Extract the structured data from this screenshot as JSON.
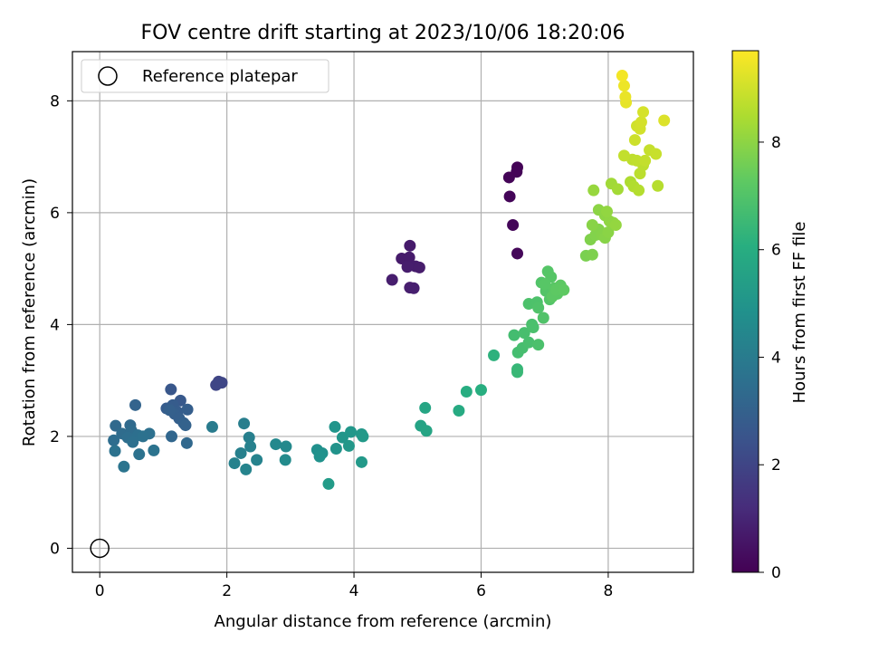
{
  "chart_data": {
    "type": "scatter",
    "title": "FOV centre drift starting at 2023/10/06 18:20:06",
    "xlabel": "Angular distance from reference (arcmin)",
    "ylabel": "Rotation from reference (arcmin)",
    "xlim": [
      -0.43,
      9.34
    ],
    "ylim": [
      -0.43,
      8.88
    ],
    "xticks": [
      0,
      2,
      4,
      6,
      8
    ],
    "yticks": [
      0,
      2,
      4,
      6,
      8
    ],
    "grid": true,
    "legend": {
      "position": "upper left",
      "entries": [
        "Reference platepar"
      ]
    },
    "reference_point": {
      "x": 0,
      "y": 0,
      "label": "Reference platepar"
    },
    "colorbar": {
      "label": "Hours from first FF file",
      "min": 0,
      "max": 9.7,
      "ticks": [
        0,
        2,
        4,
        6,
        8
      ],
      "colormap": "viridis"
    },
    "series": [
      {
        "points": [
          {
            "x": 6.57,
            "y": 6.81,
            "h": 0.05
          },
          {
            "x": 6.56,
            "y": 6.73,
            "h": 0.08
          },
          {
            "x": 6.44,
            "y": 6.63,
            "h": 0.1
          },
          {
            "x": 6.45,
            "y": 6.29,
            "h": 0.12
          },
          {
            "x": 6.5,
            "y": 5.78,
            "h": 0.15
          },
          {
            "x": 6.57,
            "y": 5.27,
            "h": 0.18
          },
          {
            "x": 4.88,
            "y": 5.41,
            "h": 0.7
          },
          {
            "x": 4.75,
            "y": 5.18,
            "h": 0.72
          },
          {
            "x": 4.87,
            "y": 5.2,
            "h": 0.73
          },
          {
            "x": 4.97,
            "y": 5.04,
            "h": 0.75
          },
          {
            "x": 5.03,
            "y": 5.02,
            "h": 0.76
          },
          {
            "x": 4.84,
            "y": 5.03,
            "h": 0.78
          },
          {
            "x": 4.6,
            "y": 4.8,
            "h": 0.8
          },
          {
            "x": 4.88,
            "y": 4.66,
            "h": 0.82
          },
          {
            "x": 4.94,
            "y": 4.65,
            "h": 0.84
          },
          {
            "x": 1.87,
            "y": 2.98,
            "h": 2.0
          },
          {
            "x": 1.92,
            "y": 2.96,
            "h": 2.02
          },
          {
            "x": 1.83,
            "y": 2.92,
            "h": 2.04
          },
          {
            "x": 1.12,
            "y": 2.84,
            "h": 2.6
          },
          {
            "x": 1.27,
            "y": 2.64,
            "h": 2.7
          },
          {
            "x": 1.05,
            "y": 2.5,
            "h": 2.8
          },
          {
            "x": 1.15,
            "y": 2.56,
            "h": 2.82
          },
          {
            "x": 1.22,
            "y": 2.44,
            "h": 2.85
          },
          {
            "x": 1.38,
            "y": 2.48,
            "h": 2.88
          },
          {
            "x": 1.18,
            "y": 2.4,
            "h": 2.9
          },
          {
            "x": 1.25,
            "y": 2.32,
            "h": 2.92
          },
          {
            "x": 1.1,
            "y": 2.47,
            "h": 2.95
          },
          {
            "x": 1.32,
            "y": 2.24,
            "h": 3.0
          },
          {
            "x": 1.35,
            "y": 2.2,
            "h": 3.02
          },
          {
            "x": 0.56,
            "y": 2.56,
            "h": 3.1
          },
          {
            "x": 1.13,
            "y": 2.0,
            "h": 3.2
          },
          {
            "x": 1.37,
            "y": 1.88,
            "h": 3.25
          },
          {
            "x": 0.25,
            "y": 2.19,
            "h": 3.3
          },
          {
            "x": 0.48,
            "y": 2.2,
            "h": 3.35
          },
          {
            "x": 0.35,
            "y": 2.05,
            "h": 3.4
          },
          {
            "x": 0.5,
            "y": 2.1,
            "h": 3.42
          },
          {
            "x": 0.22,
            "y": 1.93,
            "h": 3.45
          },
          {
            "x": 0.44,
            "y": 1.98,
            "h": 3.5
          },
          {
            "x": 0.6,
            "y": 2.02,
            "h": 3.52
          },
          {
            "x": 0.78,
            "y": 2.05,
            "h": 3.55
          },
          {
            "x": 0.52,
            "y": 1.9,
            "h": 3.58
          },
          {
            "x": 0.68,
            "y": 2.0,
            "h": 3.6
          },
          {
            "x": 0.24,
            "y": 1.74,
            "h": 3.62
          },
          {
            "x": 0.62,
            "y": 1.68,
            "h": 3.65
          },
          {
            "x": 0.85,
            "y": 1.75,
            "h": 3.68
          },
          {
            "x": 0.38,
            "y": 1.46,
            "h": 3.7
          },
          {
            "x": 1.77,
            "y": 2.17,
            "h": 4.0
          },
          {
            "x": 2.27,
            "y": 2.23,
            "h": 4.1
          },
          {
            "x": 2.35,
            "y": 1.98,
            "h": 4.15
          },
          {
            "x": 2.22,
            "y": 1.7,
            "h": 4.2
          },
          {
            "x": 2.37,
            "y": 1.82,
            "h": 4.22
          },
          {
            "x": 2.12,
            "y": 1.52,
            "h": 4.25
          },
          {
            "x": 2.47,
            "y": 1.58,
            "h": 4.3
          },
          {
            "x": 2.3,
            "y": 1.41,
            "h": 4.35
          },
          {
            "x": 2.77,
            "y": 1.86,
            "h": 4.5
          },
          {
            "x": 2.93,
            "y": 1.82,
            "h": 4.55
          },
          {
            "x": 2.92,
            "y": 1.58,
            "h": 4.6
          },
          {
            "x": 3.42,
            "y": 1.76,
            "h": 4.8
          },
          {
            "x": 3.5,
            "y": 1.7,
            "h": 4.85
          },
          {
            "x": 3.46,
            "y": 1.64,
            "h": 4.9
          },
          {
            "x": 3.72,
            "y": 1.78,
            "h": 4.95
          },
          {
            "x": 3.7,
            "y": 2.17,
            "h": 5.0
          },
          {
            "x": 3.82,
            "y": 1.98,
            "h": 5.05
          },
          {
            "x": 3.95,
            "y": 2.08,
            "h": 5.1
          },
          {
            "x": 3.92,
            "y": 1.83,
            "h": 5.12
          },
          {
            "x": 4.12,
            "y": 2.04,
            "h": 5.15
          },
          {
            "x": 4.14,
            "y": 2.0,
            "h": 5.18
          },
          {
            "x": 4.12,
            "y": 1.54,
            "h": 5.2
          },
          {
            "x": 3.6,
            "y": 1.15,
            "h": 5.25
          },
          {
            "x": 5.05,
            "y": 2.19,
            "h": 5.6
          },
          {
            "x": 5.14,
            "y": 2.1,
            "h": 5.65
          },
          {
            "x": 5.12,
            "y": 2.51,
            "h": 5.7
          },
          {
            "x": 5.65,
            "y": 2.46,
            "h": 5.9
          },
          {
            "x": 5.77,
            "y": 2.8,
            "h": 6.0
          },
          {
            "x": 6.0,
            "y": 2.83,
            "h": 6.05
          },
          {
            "x": 6.2,
            "y": 3.45,
            "h": 6.2
          },
          {
            "x": 6.57,
            "y": 3.2,
            "h": 6.4
          },
          {
            "x": 6.57,
            "y": 3.15,
            "h": 6.45
          },
          {
            "x": 6.52,
            "y": 3.81,
            "h": 6.7
          },
          {
            "x": 6.58,
            "y": 3.5,
            "h": 6.72
          },
          {
            "x": 6.65,
            "y": 3.58,
            "h": 6.75
          },
          {
            "x": 6.68,
            "y": 3.85,
            "h": 6.78
          },
          {
            "x": 6.75,
            "y": 3.68,
            "h": 6.8
          },
          {
            "x": 6.8,
            "y": 4.0,
            "h": 6.82
          },
          {
            "x": 6.82,
            "y": 3.95,
            "h": 6.85
          },
          {
            "x": 6.9,
            "y": 3.64,
            "h": 6.88
          },
          {
            "x": 6.75,
            "y": 4.37,
            "h": 6.9
          },
          {
            "x": 6.88,
            "y": 4.4,
            "h": 6.92
          },
          {
            "x": 6.9,
            "y": 4.3,
            "h": 6.95
          },
          {
            "x": 6.98,
            "y": 4.12,
            "h": 6.98
          },
          {
            "x": 6.95,
            "y": 4.75,
            "h": 7.0
          },
          {
            "x": 7.02,
            "y": 4.6,
            "h": 7.02
          },
          {
            "x": 7.08,
            "y": 4.45,
            "h": 7.05
          },
          {
            "x": 7.05,
            "y": 4.95,
            "h": 7.08
          },
          {
            "x": 7.1,
            "y": 4.85,
            "h": 7.1
          },
          {
            "x": 7.0,
            "y": 4.72,
            "h": 7.12
          },
          {
            "x": 7.15,
            "y": 4.65,
            "h": 7.15
          },
          {
            "x": 7.2,
            "y": 4.55,
            "h": 7.18
          },
          {
            "x": 7.12,
            "y": 4.5,
            "h": 7.2
          },
          {
            "x": 7.25,
            "y": 4.7,
            "h": 7.22
          },
          {
            "x": 7.18,
            "y": 4.62,
            "h": 7.25
          },
          {
            "x": 7.3,
            "y": 4.62,
            "h": 7.28
          },
          {
            "x": 7.65,
            "y": 5.23,
            "h": 7.7
          },
          {
            "x": 7.75,
            "y": 5.25,
            "h": 7.75
          },
          {
            "x": 7.72,
            "y": 5.52,
            "h": 7.8
          },
          {
            "x": 7.8,
            "y": 5.6,
            "h": 7.82
          },
          {
            "x": 7.85,
            "y": 5.7,
            "h": 7.85
          },
          {
            "x": 7.9,
            "y": 5.6,
            "h": 7.88
          },
          {
            "x": 7.95,
            "y": 5.55,
            "h": 7.9
          },
          {
            "x": 7.75,
            "y": 5.78,
            "h": 7.92
          },
          {
            "x": 8.0,
            "y": 5.65,
            "h": 7.95
          },
          {
            "x": 7.85,
            "y": 6.05,
            "h": 7.98
          },
          {
            "x": 7.95,
            "y": 5.95,
            "h": 8.0
          },
          {
            "x": 8.02,
            "y": 5.85,
            "h": 8.02
          },
          {
            "x": 8.08,
            "y": 5.82,
            "h": 8.05
          },
          {
            "x": 7.98,
            "y": 6.02,
            "h": 8.08
          },
          {
            "x": 8.12,
            "y": 5.78,
            "h": 8.1
          },
          {
            "x": 7.77,
            "y": 6.4,
            "h": 8.15
          },
          {
            "x": 8.05,
            "y": 6.52,
            "h": 8.3
          },
          {
            "x": 8.15,
            "y": 6.42,
            "h": 8.35
          },
          {
            "x": 8.35,
            "y": 6.55,
            "h": 8.5
          },
          {
            "x": 8.4,
            "y": 6.47,
            "h": 8.55
          },
          {
            "x": 8.48,
            "y": 6.4,
            "h": 8.6
          },
          {
            "x": 8.78,
            "y": 6.48,
            "h": 8.62
          },
          {
            "x": 8.5,
            "y": 6.7,
            "h": 8.7
          },
          {
            "x": 8.55,
            "y": 6.85,
            "h": 8.72
          },
          {
            "x": 8.38,
            "y": 6.95,
            "h": 8.75
          },
          {
            "x": 8.45,
            "y": 6.93,
            "h": 8.78
          },
          {
            "x": 8.25,
            "y": 7.02,
            "h": 8.8
          },
          {
            "x": 8.58,
            "y": 6.93,
            "h": 8.82
          },
          {
            "x": 8.65,
            "y": 7.12,
            "h": 8.85
          },
          {
            "x": 8.75,
            "y": 7.05,
            "h": 8.88
          },
          {
            "x": 8.42,
            "y": 7.3,
            "h": 8.95
          },
          {
            "x": 8.45,
            "y": 7.55,
            "h": 9.0
          },
          {
            "x": 8.5,
            "y": 7.5,
            "h": 9.05
          },
          {
            "x": 8.52,
            "y": 7.62,
            "h": 9.08
          },
          {
            "x": 8.55,
            "y": 7.8,
            "h": 9.1
          },
          {
            "x": 8.88,
            "y": 7.65,
            "h": 9.2
          },
          {
            "x": 8.28,
            "y": 7.97,
            "h": 9.35
          },
          {
            "x": 8.27,
            "y": 8.07,
            "h": 9.4
          },
          {
            "x": 8.25,
            "y": 8.27,
            "h": 9.45
          },
          {
            "x": 8.22,
            "y": 8.45,
            "h": 9.55
          }
        ]
      }
    ]
  }
}
